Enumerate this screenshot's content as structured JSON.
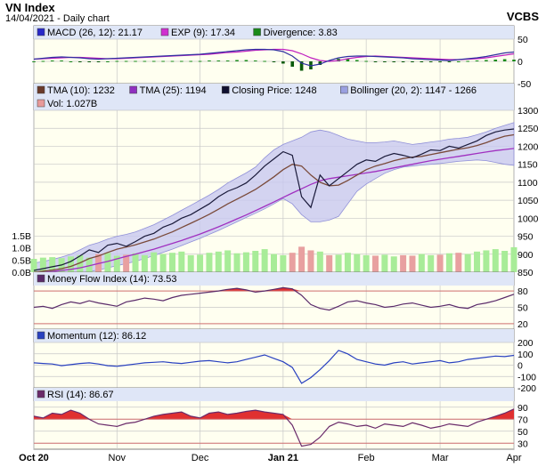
{
  "header": {
    "title": "VN Index",
    "subtitle": "14/04/2021 - Daily chart",
    "source": "VCBS"
  },
  "colors": {
    "panel_bg": "#fffff0",
    "legend_bg": "#dfe6f7",
    "grid": "#c8c8c8",
    "macd": "#3030a0",
    "exp": "#c020c0",
    "div_pos": "#1a8a1a",
    "div_neg": "#0a5a0a",
    "close": "#1a1a3a",
    "tma10": "#7a4a3a",
    "tma25": "#a030c0",
    "bollinger_fill": "#c8c8f0",
    "bollinger_edge": "#9090d8",
    "vol_up": "#a8ec98",
    "vol_down": "#e8a0a0",
    "mfi": "#5a2a6a",
    "mom": "#3050c0",
    "rsi": "#6a2a6a",
    "overbought": "#e03030",
    "threshold": "#d07070"
  },
  "chart_data": [
    {
      "type": "line",
      "name": "macd_panel",
      "legend": [
        {
          "label": "MACD (26, 12): 21.17",
          "color": "#2828c8"
        },
        {
          "label": "EXP (9): 17.34",
          "color": "#d030d0"
        },
        {
          "label": "Divergence: 3.83",
          "color": "#1a8a1a"
        }
      ],
      "ylim": [
        -50,
        50
      ],
      "yticks": [
        50,
        0,
        -50
      ],
      "grid": true,
      "series": [
        {
          "name": "MACD",
          "values": [
            5,
            7,
            9,
            10,
            9,
            8,
            6,
            5,
            6,
            7,
            8,
            9,
            10,
            11,
            12,
            13,
            14,
            15,
            16,
            18,
            20,
            22,
            24,
            26,
            27,
            27,
            26,
            22,
            12,
            -4,
            -10,
            -6,
            2,
            8,
            11,
            12,
            12,
            11,
            10,
            9,
            8,
            6,
            5,
            4,
            3,
            2,
            4,
            6,
            8,
            11,
            15,
            19,
            21
          ]
        },
        {
          "name": "EXP",
          "values": [
            5,
            6,
            7,
            8,
            9,
            9,
            8,
            7,
            6,
            6,
            7,
            8,
            9,
            10,
            11,
            12,
            13,
            14,
            15,
            16,
            18,
            20,
            21,
            23,
            25,
            26,
            27,
            27,
            24,
            17,
            8,
            2,
            0,
            2,
            6,
            9,
            11,
            12,
            11,
            10,
            9,
            8,
            7,
            6,
            5,
            4,
            4,
            5,
            6,
            8,
            11,
            14,
            17
          ]
        },
        {
          "name": "Divergence",
          "values": [
            0,
            1,
            2,
            2,
            0,
            -1,
            -2,
            -2,
            0,
            1,
            1,
            1,
            1,
            1,
            1,
            1,
            1,
            1,
            1,
            2,
            2,
            2,
            3,
            3,
            2,
            1,
            -1,
            -5,
            -12,
            -21,
            -18,
            -8,
            2,
            6,
            5,
            3,
            1,
            -1,
            -1,
            -1,
            -1,
            -2,
            -2,
            -2,
            -2,
            -2,
            0,
            1,
            2,
            3,
            4,
            5,
            4
          ]
        }
      ]
    },
    {
      "type": "line",
      "name": "price_panel",
      "legend": [
        {
          "label": "TMA (10): 1232",
          "color": "#6a3a2a"
        },
        {
          "label": "TMA (25): 1194",
          "color": "#9030c0"
        },
        {
          "label": "Closing Price: 1248",
          "color": "#101030"
        },
        {
          "label": "Bollinger (20, 2): 1147 - 1266",
          "color": "#9aa0e0"
        },
        {
          "label": "Vol: 1.027B",
          "color": "#e89a9a"
        }
      ],
      "ylim": [
        850,
        1300
      ],
      "yticks": [
        1300,
        1250,
        1200,
        1150,
        1100,
        1050,
        1000,
        950,
        900,
        850
      ],
      "vol_ticks": [
        "1.5B",
        "1.0B",
        "0.5B",
        "0.0B"
      ],
      "vol_ylim": [
        0,
        2.2
      ],
      "grid": true,
      "series": [
        {
          "name": "Closing Price",
          "values": [
            855,
            860,
            865,
            870,
            880,
            895,
            912,
            905,
            925,
            930,
            922,
            935,
            950,
            958,
            975,
            985,
            1000,
            1010,
            1025,
            1040,
            1060,
            1075,
            1085,
            1098,
            1120,
            1145,
            1165,
            1185,
            1175,
            1060,
            1030,
            1120,
            1090,
            1110,
            1130,
            1150,
            1162,
            1158,
            1172,
            1180,
            1175,
            1168,
            1178,
            1190,
            1188,
            1200,
            1195,
            1205,
            1215,
            1230,
            1240,
            1245,
            1248
          ]
        },
        {
          "name": "TMA (10)",
          "values": [
            850,
            853,
            856,
            860,
            866,
            876,
            888,
            895,
            905,
            914,
            920,
            926,
            934,
            942,
            952,
            962,
            974,
            986,
            998,
            1011,
            1025,
            1040,
            1053,
            1066,
            1080,
            1097,
            1115,
            1135,
            1150,
            1145,
            1120,
            1100,
            1090,
            1092,
            1105,
            1120,
            1135,
            1145,
            1152,
            1160,
            1166,
            1170,
            1172,
            1177,
            1182,
            1187,
            1192,
            1196,
            1202,
            1210,
            1220,
            1228,
            1232
          ]
        },
        {
          "name": "TMA (25)",
          "values": [
            848,
            850,
            852,
            855,
            858,
            862,
            868,
            874,
            880,
            887,
            894,
            900,
            907,
            914,
            922,
            930,
            938,
            947,
            956,
            966,
            976,
            987,
            998,
            1009,
            1021,
            1033,
            1045,
            1058,
            1070,
            1082,
            1094,
            1104,
            1110,
            1114,
            1118,
            1122,
            1126,
            1130,
            1135,
            1140,
            1145,
            1150,
            1155,
            1160,
            1164,
            1168,
            1172,
            1176,
            1180,
            1184,
            1188,
            1191,
            1194
          ]
        },
        {
          "name": "Bollinger upper",
          "values": [
            875,
            880,
            885,
            892,
            900,
            912,
            925,
            932,
            942,
            950,
            955,
            962,
            972,
            982,
            995,
            1008,
            1022,
            1036,
            1050,
            1064,
            1080,
            1098,
            1112,
            1126,
            1142,
            1168,
            1190,
            1205,
            1215,
            1225,
            1240,
            1245,
            1240,
            1230,
            1220,
            1215,
            1210,
            1210,
            1212,
            1215,
            1210,
            1205,
            1208,
            1212,
            1215,
            1220,
            1222,
            1225,
            1232,
            1240,
            1250,
            1258,
            1266
          ]
        },
        {
          "name": "Bollinger lower",
          "values": [
            835,
            838,
            840,
            842,
            845,
            848,
            852,
            856,
            862,
            868,
            874,
            880,
            888,
            896,
            905,
            914,
            924,
            934,
            944,
            955,
            966,
            978,
            990,
            1002,
            1014,
            1026,
            1040,
            1055,
            1040,
            1010,
            990,
            990,
            995,
            1005,
            1040,
            1075,
            1095,
            1110,
            1125,
            1135,
            1142,
            1145,
            1148,
            1150,
            1152,
            1155,
            1158,
            1160,
            1162,
            1160,
            1155,
            1150,
            1147
          ]
        },
        {
          "name": "Volume",
          "values": [
            0.55,
            0.6,
            0.62,
            0.58,
            0.65,
            0.7,
            0.6,
            0.75,
            0.8,
            0.68,
            0.72,
            0.78,
            0.7,
            0.82,
            0.75,
            0.8,
            0.85,
            0.7,
            0.72,
            0.8,
            0.85,
            0.9,
            0.78,
            0.82,
            0.88,
            0.95,
            0.75,
            0.7,
            0.8,
            1.05,
            0.9,
            0.85,
            0.7,
            0.72,
            0.8,
            0.75,
            0.7,
            0.68,
            0.72,
            0.65,
            0.7,
            0.68,
            0.75,
            0.7,
            0.72,
            0.78,
            0.8,
            0.75,
            0.85,
            0.9,
            0.95,
            0.88,
            1.03
          ]
        }
      ]
    },
    {
      "type": "line",
      "name": "mfi_panel",
      "legend": [
        {
          "label": "Money Flow Index (14): 73.53",
          "color": "#5a2a6a"
        }
      ],
      "ylim": [
        10,
        90
      ],
      "yticks": [
        80,
        50,
        20
      ],
      "thresholds": [
        80,
        20
      ],
      "series": [
        {
          "name": "Money Flow Index",
          "values": [
            50,
            52,
            48,
            55,
            60,
            57,
            62,
            58,
            55,
            52,
            60,
            63,
            67,
            65,
            62,
            68,
            72,
            74,
            76,
            78,
            80,
            83,
            85,
            82,
            78,
            80,
            83,
            86,
            84,
            72,
            55,
            48,
            45,
            52,
            60,
            62,
            58,
            55,
            50,
            52,
            56,
            58,
            54,
            50,
            52,
            55,
            50,
            48,
            55,
            58,
            62,
            68,
            74
          ]
        }
      ]
    },
    {
      "type": "line",
      "name": "momentum_panel",
      "legend": [
        {
          "label": "Momentum (12): 86.12",
          "color": "#2840c0"
        }
      ],
      "ylim": [
        -200,
        200
      ],
      "yticks": [
        200,
        100,
        0,
        -100,
        -200
      ],
      "series": [
        {
          "name": "Momentum",
          "values": [
            20,
            15,
            10,
            -5,
            5,
            15,
            20,
            10,
            -5,
            -10,
            0,
            10,
            20,
            25,
            30,
            20,
            15,
            25,
            35,
            40,
            30,
            20,
            30,
            50,
            70,
            90,
            60,
            30,
            -20,
            -160,
            -110,
            -40,
            40,
            130,
            100,
            50,
            30,
            10,
            0,
            20,
            30,
            10,
            20,
            30,
            40,
            20,
            30,
            50,
            60,
            70,
            80,
            75,
            86
          ]
        }
      ]
    },
    {
      "type": "line",
      "name": "rsi_panel",
      "legend": [
        {
          "label": "RSI (14): 86.67",
          "color": "#6a2a6a"
        }
      ],
      "ylim": [
        20,
        100
      ],
      "yticks": [
        90,
        70,
        50,
        30
      ],
      "thresholds": [
        70,
        30
      ],
      "series": [
        {
          "name": "RSI",
          "values": [
            75,
            72,
            80,
            78,
            85,
            80,
            70,
            62,
            60,
            58,
            63,
            65,
            70,
            75,
            78,
            80,
            82,
            75,
            72,
            80,
            82,
            78,
            80,
            83,
            85,
            82,
            80,
            78,
            60,
            25,
            28,
            40,
            58,
            65,
            62,
            58,
            60,
            55,
            62,
            60,
            58,
            64,
            60,
            55,
            58,
            62,
            60,
            58,
            65,
            70,
            75,
            80,
            87
          ]
        }
      ]
    }
  ],
  "x_axis": {
    "labels": [
      "Oct 20",
      "Nov",
      "Dec",
      "Jan 21",
      "Feb",
      "Mar",
      "Apr"
    ],
    "bold": [
      "Oct 20",
      "Jan 21"
    ]
  }
}
